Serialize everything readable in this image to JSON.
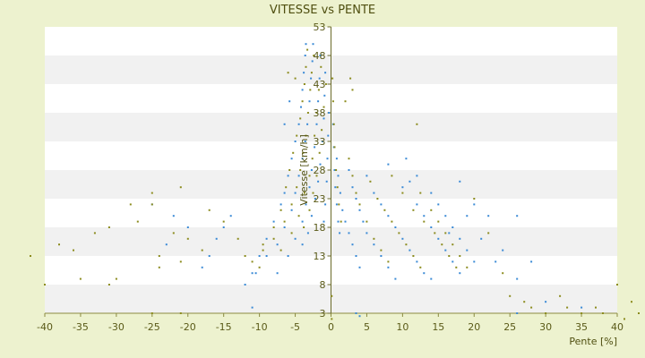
{
  "chart_data": {
    "type": "scatter",
    "title": "VITESSE vs PENTE",
    "xlabel": "Pente [%]",
    "ylabel": "Vitesse [km/h]",
    "xlim": [
      -40,
      40
    ],
    "ylim": [
      3,
      53
    ],
    "xticks": [
      -40,
      -35,
      -30,
      -25,
      -20,
      -15,
      -10,
      -5,
      0,
      5,
      10,
      15,
      20,
      25,
      30,
      35,
      40
    ],
    "yticks": [
      3,
      8,
      13,
      18,
      23,
      28,
      33,
      38,
      43,
      48,
      53
    ],
    "grid": "horizontal bands",
    "legend": "none",
    "colors": {
      "blue": "#3a8ad6",
      "olive": "#8c8c1e",
      "band": "#f1f1f1",
      "plot_bg": "#ffffff",
      "page_bg": "#edf2cf"
    },
    "series": [
      {
        "color": "blue",
        "points": [
          [
            -3.5,
            50
          ],
          [
            -3.6,
            48
          ],
          [
            -3.8,
            45
          ],
          [
            -4,
            42
          ],
          [
            -4.2,
            39
          ],
          [
            -4.5,
            36
          ],
          [
            -5,
            33
          ],
          [
            -5.5,
            30
          ],
          [
            -6,
            27
          ],
          [
            -6.5,
            24
          ],
          [
            -7,
            22
          ],
          [
            -8,
            19
          ],
          [
            -9,
            16
          ],
          [
            -10,
            13
          ],
          [
            -11,
            10
          ],
          [
            -12,
            8
          ],
          [
            -2.5,
            50
          ],
          [
            -2.6,
            47
          ],
          [
            -2.8,
            44
          ],
          [
            -3,
            40
          ],
          [
            -3.3,
            36
          ],
          [
            -3.6,
            33
          ],
          [
            -4,
            30
          ],
          [
            -4.5,
            27
          ],
          [
            -5,
            24
          ],
          [
            -5.5,
            21
          ],
          [
            -6.5,
            18
          ],
          [
            -7.5,
            15
          ],
          [
            -9,
            13
          ],
          [
            -10.5,
            10
          ],
          [
            -1.5,
            48
          ],
          [
            -1.6,
            44
          ],
          [
            -1.8,
            40
          ],
          [
            -2,
            36
          ],
          [
            -2.3,
            32
          ],
          [
            -2.7,
            28
          ],
          [
            -3,
            25
          ],
          [
            -3.5,
            22
          ],
          [
            -4,
            19
          ],
          [
            -5,
            16
          ],
          [
            -6,
            13
          ],
          [
            -7.5,
            10
          ],
          [
            -0.8,
            45
          ],
          [
            -0.9,
            41
          ],
          [
            -1,
            37
          ],
          [
            -1.2,
            33
          ],
          [
            -1.5,
            29
          ],
          [
            -1.8,
            26
          ],
          [
            -2.2,
            23
          ],
          [
            -2.7,
            20
          ],
          [
            -3.2,
            17
          ],
          [
            -4,
            15
          ],
          [
            -0.3,
            38
          ],
          [
            -0.4,
            34
          ],
          [
            -0.5,
            30
          ],
          [
            -0.6,
            26
          ],
          [
            -0.8,
            22
          ],
          [
            -1,
            19
          ],
          [
            0.3,
            36
          ],
          [
            0.4,
            32
          ],
          [
            0.5,
            28
          ],
          [
            0.6,
            25
          ],
          [
            0.8,
            22
          ],
          [
            1,
            19
          ],
          [
            1.2,
            17
          ],
          [
            0.8,
            30
          ],
          [
            1,
            27
          ],
          [
            1.3,
            24
          ],
          [
            1.6,
            21
          ],
          [
            2,
            19
          ],
          [
            2.5,
            17
          ],
          [
            3,
            15
          ],
          [
            3.5,
            13
          ],
          [
            4,
            11
          ],
          [
            2.5,
            28
          ],
          [
            3,
            25
          ],
          [
            3.5,
            23
          ],
          [
            4,
            21
          ],
          [
            4.5,
            19
          ],
          [
            5,
            17
          ],
          [
            6,
            15
          ],
          [
            7,
            13
          ],
          [
            8,
            11
          ],
          [
            9,
            9
          ],
          [
            5,
            27
          ],
          [
            6,
            24
          ],
          [
            7,
            22
          ],
          [
            8,
            20
          ],
          [
            9,
            18
          ],
          [
            10,
            16
          ],
          [
            11,
            14
          ],
          [
            12,
            12
          ],
          [
            13,
            10
          ],
          [
            14,
            9
          ],
          [
            8,
            29
          ],
          [
            10,
            25
          ],
          [
            12,
            22
          ],
          [
            13,
            20
          ],
          [
            14,
            18
          ],
          [
            15,
            16
          ],
          [
            16,
            14
          ],
          [
            17,
            12
          ],
          [
            18,
            10
          ],
          [
            12,
            27
          ],
          [
            14,
            24
          ],
          [
            15,
            22
          ],
          [
            16,
            20
          ],
          [
            17,
            18
          ],
          [
            18,
            16
          ],
          [
            19,
            14
          ],
          [
            20,
            12
          ],
          [
            -14,
            20
          ],
          [
            -15,
            18
          ],
          [
            -16,
            16
          ],
          [
            -17,
            13
          ],
          [
            -18,
            11
          ],
          [
            -20,
            18
          ],
          [
            -22,
            20
          ],
          [
            -25,
            22
          ],
          [
            -23,
            15
          ],
          [
            18,
            26
          ],
          [
            20,
            22
          ],
          [
            22,
            20
          ],
          [
            21,
            16
          ],
          [
            23,
            12
          ],
          [
            24,
            14
          ],
          [
            26,
            20
          ],
          [
            26,
            9
          ],
          [
            28,
            12
          ],
          [
            30,
            5
          ],
          [
            35,
            4
          ],
          [
            -6.5,
            36
          ],
          [
            -5.8,
            40
          ],
          [
            10.5,
            30
          ],
          [
            11,
            26
          ],
          [
            16.5,
            17
          ],
          [
            19,
            20
          ],
          [
            -11,
            4
          ],
          [
            3.5,
            3
          ],
          [
            4,
            2.5
          ],
          [
            26,
            3
          ]
        ]
      },
      {
        "color": "olive",
        "points": [
          [
            -3.3,
            49
          ],
          [
            -3.5,
            46
          ],
          [
            -3.7,
            43
          ],
          [
            -4,
            40
          ],
          [
            -4.3,
            37
          ],
          [
            -4.8,
            34
          ],
          [
            -5.3,
            31
          ],
          [
            -5.8,
            28
          ],
          [
            -6.3,
            25
          ],
          [
            -7,
            21
          ],
          [
            -8,
            18
          ],
          [
            -9.5,
            15
          ],
          [
            -11,
            12
          ],
          [
            -2.4,
            48
          ],
          [
            -2.7,
            45
          ],
          [
            -2.9,
            42
          ],
          [
            -3.2,
            38
          ],
          [
            -3.5,
            34
          ],
          [
            -3.9,
            31
          ],
          [
            -4.3,
            28
          ],
          [
            -4.8,
            25
          ],
          [
            -5.5,
            22
          ],
          [
            -6.5,
            19
          ],
          [
            -8,
            16
          ],
          [
            -9.5,
            14
          ],
          [
            -1.4,
            46
          ],
          [
            -1.7,
            42
          ],
          [
            -2,
            38
          ],
          [
            -2.3,
            34
          ],
          [
            -2.6,
            30
          ],
          [
            -3,
            27
          ],
          [
            -3.7,
            24
          ],
          [
            -4.5,
            20
          ],
          [
            -5.5,
            17
          ],
          [
            -7,
            14
          ],
          [
            -0.7,
            43
          ],
          [
            -1,
            39
          ],
          [
            -1.3,
            35
          ],
          [
            -1.6,
            31
          ],
          [
            -2,
            27
          ],
          [
            -2.5,
            24
          ],
          [
            -3,
            21
          ],
          [
            -3.8,
            18
          ],
          [
            0.2,
            44
          ],
          [
            0.3,
            40
          ],
          [
            0.4,
            36
          ],
          [
            0.5,
            32
          ],
          [
            0.7,
            28
          ],
          [
            0.9,
            25
          ],
          [
            1.1,
            22
          ],
          [
            1.4,
            19
          ],
          [
            2.5,
            30
          ],
          [
            3,
            27
          ],
          [
            3.5,
            24
          ],
          [
            4,
            22
          ],
          [
            5,
            19
          ],
          [
            6,
            16
          ],
          [
            7,
            14
          ],
          [
            8,
            12
          ],
          [
            5.5,
            26
          ],
          [
            6.5,
            23
          ],
          [
            7.5,
            21
          ],
          [
            8.5,
            19
          ],
          [
            9.5,
            17
          ],
          [
            10.5,
            15
          ],
          [
            11.5,
            13
          ],
          [
            12.5,
            11
          ],
          [
            8.5,
            27
          ],
          [
            10,
            24
          ],
          [
            11.5,
            21
          ],
          [
            13,
            19
          ],
          [
            14.5,
            17
          ],
          [
            15.5,
            15
          ],
          [
            16.5,
            13
          ],
          [
            17.5,
            11
          ],
          [
            12.5,
            24
          ],
          [
            14,
            21
          ],
          [
            15,
            19
          ],
          [
            16,
            17
          ],
          [
            17,
            15
          ],
          [
            18,
            13
          ],
          [
            19,
            11
          ],
          [
            -42,
            13
          ],
          [
            -38,
            15
          ],
          [
            -36,
            14
          ],
          [
            -35,
            9
          ],
          [
            -33,
            17
          ],
          [
            -31,
            18
          ],
          [
            -31,
            8
          ],
          [
            -30,
            9
          ],
          [
            -28,
            22
          ],
          [
            -27,
            19
          ],
          [
            -25,
            24
          ],
          [
            -25,
            22
          ],
          [
            -24,
            13
          ],
          [
            -24,
            11
          ],
          [
            -22,
            17
          ],
          [
            -21,
            25
          ],
          [
            -21,
            12
          ],
          [
            -20,
            16
          ],
          [
            -18,
            14
          ],
          [
            -17,
            21
          ],
          [
            -15,
            19
          ],
          [
            -13,
            16
          ],
          [
            -12,
            13
          ],
          [
            -10,
            11
          ],
          [
            -25,
            3
          ],
          [
            -21,
            3
          ],
          [
            -40,
            8
          ],
          [
            2,
            40
          ],
          [
            2.7,
            44
          ],
          [
            3,
            42
          ],
          [
            12,
            36
          ],
          [
            20,
            23
          ],
          [
            22,
            17
          ],
          [
            24,
            10
          ],
          [
            25,
            6
          ],
          [
            27,
            5
          ],
          [
            28,
            4
          ],
          [
            30,
            3
          ],
          [
            32,
            6
          ],
          [
            33,
            4
          ],
          [
            35,
            3
          ],
          [
            37,
            4
          ],
          [
            38,
            3
          ],
          [
            40,
            8
          ],
          [
            41,
            2
          ],
          [
            42,
            5
          ],
          [
            43,
            3
          ],
          [
            44,
            6
          ],
          [
            -6,
            45
          ],
          [
            -5,
            44
          ],
          [
            0.1,
            2
          ],
          [
            0.1,
            6
          ]
        ]
      }
    ]
  }
}
